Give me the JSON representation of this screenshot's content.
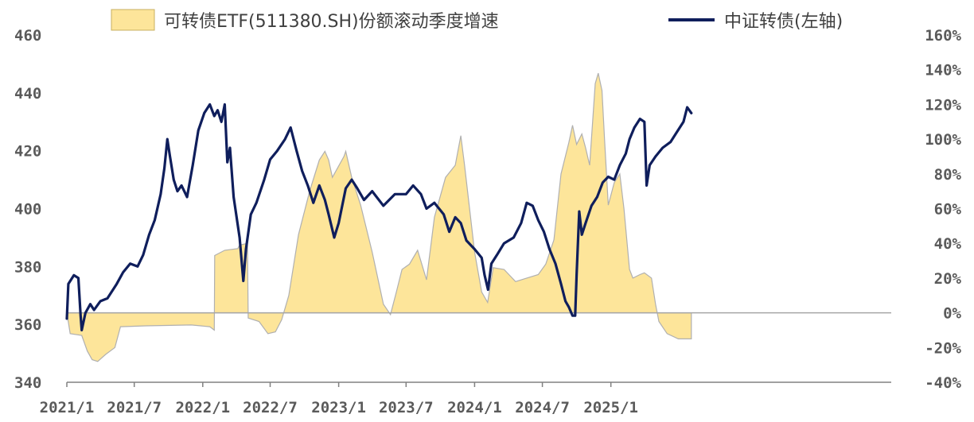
{
  "chart_data": {
    "type": "line",
    "legend_position": "top",
    "grid": false,
    "x_ticks": [
      "2021/1",
      "2021/7",
      "2022/1",
      "2022/7",
      "2023/1",
      "2023/7",
      "2024/1",
      "2024/7",
      "2025/1"
    ],
    "y_left": {
      "range": [
        340,
        460
      ],
      "ticks": [
        "340",
        "360",
        "380",
        "400",
        "420",
        "440",
        "460"
      ]
    },
    "y_right": {
      "range": [
        -40,
        160
      ],
      "unit": "%",
      "ticks": [
        "-40%",
        "-20%",
        "0%",
        "20%",
        "40%",
        "60%",
        "80%",
        "100%",
        "120%",
        "140%",
        "160%"
      ]
    },
    "series": [
      {
        "name": "可转债ETF(511380.SH)份额滚动季度增速",
        "kind": "area",
        "axis": "right",
        "color": "#fde59a",
        "stroke": "#b0b0b0",
        "points": [
          [
            "2021-01-01",
            0
          ],
          [
            "2021-01-10",
            -12
          ],
          [
            "2021-02-10",
            -13
          ],
          [
            "2021-02-25",
            -22
          ],
          [
            "2021-03-10",
            -27
          ],
          [
            "2021-03-25",
            -28
          ],
          [
            "2021-04-15",
            -24
          ],
          [
            "2021-05-10",
            -20
          ],
          [
            "2021-05-25",
            -8
          ],
          [
            "2021-08-01",
            -7.5
          ],
          [
            "2021-12-01",
            -7
          ],
          [
            "2022-01-20",
            -8
          ],
          [
            "2022-02-01",
            -10
          ],
          [
            "2022-02-02",
            33
          ],
          [
            "2022-03-01",
            36
          ],
          [
            "2022-04-05",
            37
          ],
          [
            "2022-04-10",
            39
          ],
          [
            "2022-05-01",
            40
          ],
          [
            "2022-05-03",
            -3
          ],
          [
            "2022-06-01",
            -5
          ],
          [
            "2022-06-25",
            -12
          ],
          [
            "2022-07-15",
            -11
          ],
          [
            "2022-08-01",
            -4
          ],
          [
            "2022-08-20",
            10
          ],
          [
            "2022-09-15",
            45
          ],
          [
            "2022-10-15",
            70
          ],
          [
            "2022-11-10",
            88
          ],
          [
            "2022-11-25",
            93
          ],
          [
            "2022-12-05",
            88
          ],
          [
            "2022-12-15",
            78
          ],
          [
            "2023-01-15",
            90
          ],
          [
            "2023-01-20",
            93
          ],
          [
            "2023-02-05",
            78
          ],
          [
            "2023-03-01",
            62
          ],
          [
            "2023-04-01",
            35
          ],
          [
            "2023-05-01",
            5
          ],
          [
            "2023-05-20",
            -1
          ],
          [
            "2023-06-05",
            12
          ],
          [
            "2023-06-20",
            25
          ],
          [
            "2023-07-10",
            28
          ],
          [
            "2023-08-01",
            36
          ],
          [
            "2023-08-25",
            19
          ],
          [
            "2023-09-15",
            55
          ],
          [
            "2023-10-15",
            78
          ],
          [
            "2023-11-10",
            85
          ],
          [
            "2023-11-25",
            102
          ],
          [
            "2023-12-05",
            85
          ],
          [
            "2024-01-01",
            35
          ],
          [
            "2024-01-20",
            12
          ],
          [
            "2024-02-05",
            6
          ],
          [
            "2024-02-20",
            26
          ],
          [
            "2024-03-20",
            25
          ],
          [
            "2024-04-20",
            18
          ],
          [
            "2024-05-20",
            20
          ],
          [
            "2024-06-20",
            22
          ],
          [
            "2024-07-10",
            28
          ],
          [
            "2024-08-01",
            42
          ],
          [
            "2024-08-20",
            80
          ],
          [
            "2024-09-10",
            98
          ],
          [
            "2024-09-20",
            108
          ],
          [
            "2024-10-01",
            97
          ],
          [
            "2024-10-15",
            103
          ],
          [
            "2024-10-25",
            95
          ],
          [
            "2024-11-05",
            85
          ],
          [
            "2024-11-20",
            132
          ],
          [
            "2024-11-28",
            138
          ],
          [
            "2024-12-08",
            128
          ],
          [
            "2024-12-15",
            100
          ],
          [
            "2024-12-25",
            62
          ],
          [
            "2025-01-10",
            75
          ],
          [
            "2025-01-25",
            80
          ],
          [
            "2025-02-05",
            60
          ],
          [
            "2025-02-20",
            25
          ],
          [
            "2025-03-01",
            20
          ],
          [
            "2025-03-20",
            22
          ],
          [
            "2025-04-01",
            23
          ],
          [
            "2025-04-20",
            20
          ],
          [
            "2025-05-01",
            5
          ],
          [
            "2025-05-10",
            -5
          ],
          [
            "2025-06-01",
            -12
          ],
          [
            "2025-07-01",
            -15
          ],
          [
            "2025-07-25",
            -15
          ],
          [
            "2025-08-05",
            -15
          ],
          [
            "2025-08-05",
            0
          ]
        ]
      },
      {
        "name": "中证转债(左轴)",
        "kind": "line",
        "axis": "left",
        "color": "#0f1e5c",
        "points": [
          [
            "2021-01-01",
            362
          ],
          [
            "2021-01-05",
            374
          ],
          [
            "2021-01-20",
            377
          ],
          [
            "2021-02-01",
            376
          ],
          [
            "2021-02-07",
            363
          ],
          [
            "2021-02-10",
            358
          ],
          [
            "2021-02-20",
            364
          ],
          [
            "2021-03-05",
            367
          ],
          [
            "2021-03-15",
            365
          ],
          [
            "2021-04-01",
            368
          ],
          [
            "2021-04-20",
            369
          ],
          [
            "2021-05-15",
            374
          ],
          [
            "2021-06-01",
            378
          ],
          [
            "2021-06-20",
            381
          ],
          [
            "2021-07-10",
            380
          ],
          [
            "2021-07-25",
            384
          ],
          [
            "2021-08-10",
            391
          ],
          [
            "2021-08-25",
            396
          ],
          [
            "2021-09-10",
            405
          ],
          [
            "2021-09-20",
            414
          ],
          [
            "2021-09-28",
            424
          ],
          [
            "2021-10-05",
            418
          ],
          [
            "2021-10-15",
            410
          ],
          [
            "2021-10-25",
            406
          ],
          [
            "2021-11-05",
            408
          ],
          [
            "2021-11-20",
            404
          ],
          [
            "2021-12-05",
            415
          ],
          [
            "2021-12-20",
            427
          ],
          [
            "2022-01-05",
            433
          ],
          [
            "2022-01-20",
            436
          ],
          [
            "2022-02-01",
            432
          ],
          [
            "2022-02-10",
            434
          ],
          [
            "2022-02-20",
            430
          ],
          [
            "2022-03-01",
            436
          ],
          [
            "2022-03-08",
            416
          ],
          [
            "2022-03-15",
            421
          ],
          [
            "2022-03-25",
            404
          ],
          [
            "2022-04-10",
            390
          ],
          [
            "2022-04-20",
            375
          ],
          [
            "2022-04-27",
            386
          ],
          [
            "2022-05-10",
            398
          ],
          [
            "2022-05-25",
            402
          ],
          [
            "2022-06-15",
            410
          ],
          [
            "2022-07-01",
            417
          ],
          [
            "2022-07-20",
            420
          ],
          [
            "2022-08-10",
            424
          ],
          [
            "2022-08-25",
            428
          ],
          [
            "2022-09-10",
            420
          ],
          [
            "2022-09-25",
            413
          ],
          [
            "2022-10-10",
            408
          ],
          [
            "2022-10-25",
            402
          ],
          [
            "2022-11-10",
            408
          ],
          [
            "2022-11-25",
            403
          ],
          [
            "2022-12-05",
            398
          ],
          [
            "2022-12-20",
            390
          ],
          [
            "2023-01-01",
            395
          ],
          [
            "2023-01-20",
            407
          ],
          [
            "2023-02-05",
            410
          ],
          [
            "2023-02-20",
            407
          ],
          [
            "2023-03-10",
            403
          ],
          [
            "2023-04-01",
            406
          ],
          [
            "2023-05-01",
            401
          ],
          [
            "2023-06-01",
            405
          ],
          [
            "2023-07-01",
            405
          ],
          [
            "2023-07-20",
            408
          ],
          [
            "2023-08-10",
            405
          ],
          [
            "2023-08-25",
            400
          ],
          [
            "2023-09-15",
            402
          ],
          [
            "2023-10-10",
            398
          ],
          [
            "2023-10-25",
            392
          ],
          [
            "2023-11-10",
            397
          ],
          [
            "2023-11-25",
            395
          ],
          [
            "2023-12-10",
            389
          ],
          [
            "2024-01-01",
            386
          ],
          [
            "2024-01-20",
            383
          ],
          [
            "2024-01-28",
            377
          ],
          [
            "2024-02-06",
            372
          ],
          [
            "2024-02-15",
            381
          ],
          [
            "2024-03-01",
            384
          ],
          [
            "2024-03-20",
            388
          ],
          [
            "2024-04-15",
            390
          ],
          [
            "2024-05-05",
            395
          ],
          [
            "2024-05-20",
            402
          ],
          [
            "2024-06-05",
            401
          ],
          [
            "2024-06-20",
            396
          ],
          [
            "2024-07-05",
            392
          ],
          [
            "2024-07-20",
            386
          ],
          [
            "2024-08-05",
            381
          ],
          [
            "2024-08-20",
            374
          ],
          [
            "2024-09-01",
            368
          ],
          [
            "2024-09-10",
            366
          ],
          [
            "2024-09-20",
            363
          ],
          [
            "2024-09-27",
            363
          ],
          [
            "2024-10-01",
            377
          ],
          [
            "2024-10-08",
            399
          ],
          [
            "2024-10-15",
            391
          ],
          [
            "2024-10-25",
            395
          ],
          [
            "2024-11-10",
            401
          ],
          [
            "2024-11-25",
            404
          ],
          [
            "2024-12-10",
            409
          ],
          [
            "2024-12-25",
            411
          ],
          [
            "2025-01-10",
            410
          ],
          [
            "2025-01-25",
            415
          ],
          [
            "2025-02-10",
            419
          ],
          [
            "2025-02-20",
            424
          ],
          [
            "2025-03-05",
            428
          ],
          [
            "2025-03-20",
            431
          ],
          [
            "2025-04-01",
            430
          ],
          [
            "2025-04-07",
            408
          ],
          [
            "2025-04-15",
            415
          ],
          [
            "2025-05-01",
            418
          ],
          [
            "2025-05-20",
            421
          ],
          [
            "2025-06-10",
            423
          ],
          [
            "2025-06-25",
            426
          ],
          [
            "2025-07-15",
            430
          ],
          [
            "2025-07-25",
            435
          ],
          [
            "2025-08-05",
            433
          ]
        ]
      }
    ]
  },
  "legend": {
    "area_label": "可转债ETF(511380.SH)份额滚动季度增速",
    "line_label": "中证转债(左轴)"
  }
}
